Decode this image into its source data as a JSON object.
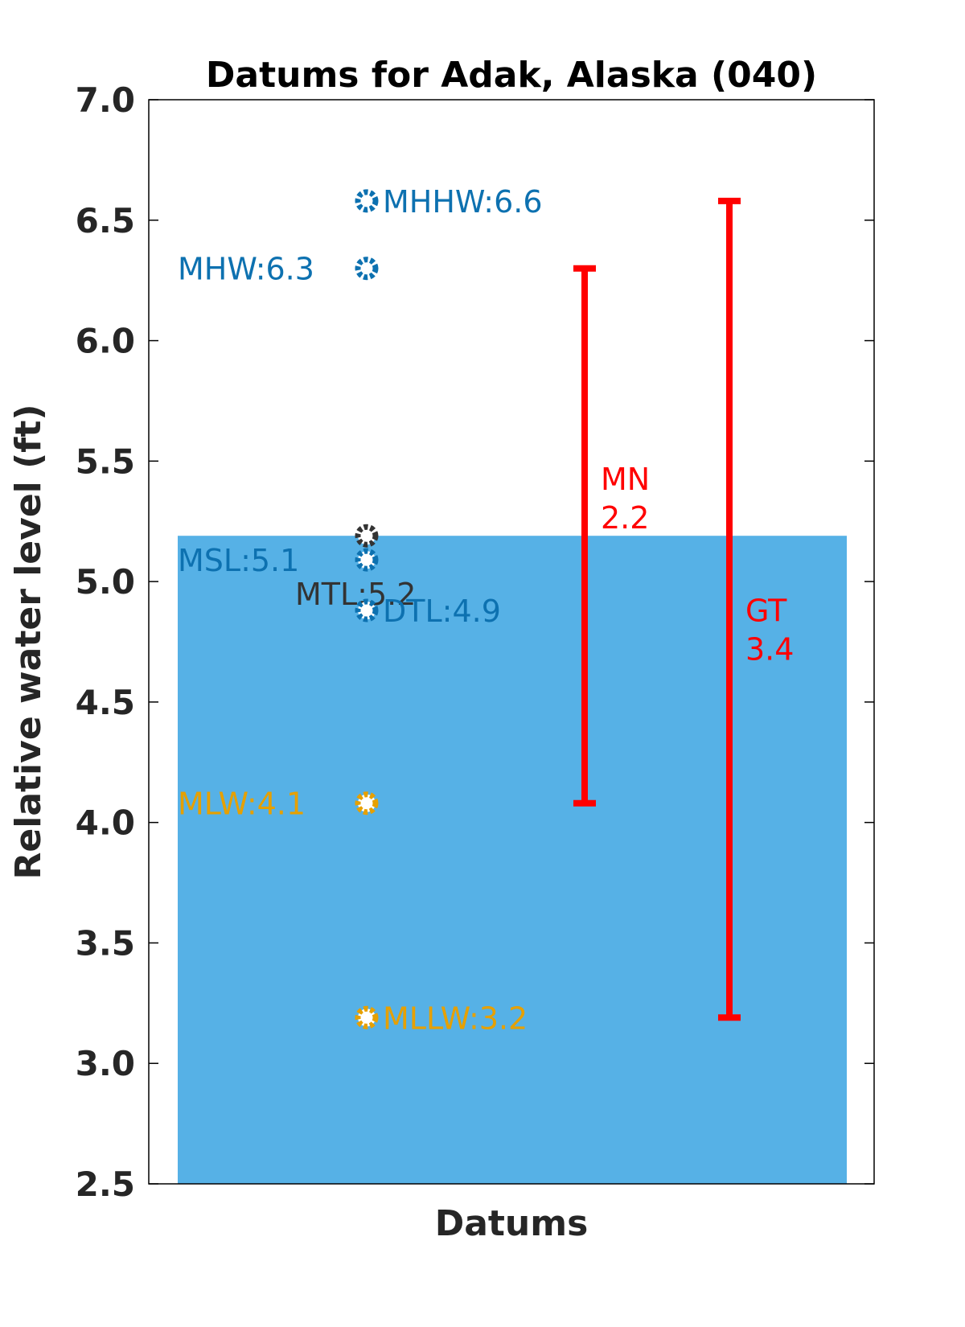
{
  "chart_data": {
    "type": "scatter",
    "title": "Datums for Adak, Alaska (040)",
    "xlabel": "Datums",
    "ylabel": "Relative water level (ft)",
    "ylim": [
      2.5,
      7.0
    ],
    "yticks": [
      "2.5",
      "3.0",
      "3.5",
      "4.0",
      "4.5",
      "5.0",
      "5.5",
      "6.0",
      "6.5",
      "7.0"
    ],
    "grid": false,
    "background_bar": {
      "top": 5.19,
      "color": "#56b1e6"
    },
    "datums": [
      {
        "key": "MHHW",
        "value": 6.58,
        "label": "MHHW:6.6",
        "color": "#0d71b0",
        "label_side": "right"
      },
      {
        "key": "MHW",
        "value": 6.3,
        "label": "MHW:6.3",
        "color": "#0d71b0",
        "label_side": "left"
      },
      {
        "key": "MTL",
        "value": 5.19,
        "label": "MTL:5.2",
        "color": "#333333",
        "label_side": "left-below"
      },
      {
        "key": "MSL",
        "value": 5.09,
        "label": "MSL:5.1",
        "color": "#0d71b0",
        "label_side": "left"
      },
      {
        "key": "DTL",
        "value": 4.88,
        "label": "DTL:4.9",
        "color": "#0d71b0",
        "label_side": "right"
      },
      {
        "key": "MLW",
        "value": 4.08,
        "label": "MLW:4.1",
        "color": "#e6a000",
        "label_side": "left"
      },
      {
        "key": "MLLW",
        "value": 3.19,
        "label": "MLLW:3.2",
        "color": "#e6a000",
        "label_side": "right"
      }
    ],
    "ranges": [
      {
        "name": "MN",
        "value": "2.2",
        "low": 4.08,
        "high": 6.3,
        "color": "#ff0000"
      },
      {
        "name": "GT",
        "value": "3.4",
        "low": 3.19,
        "high": 6.58,
        "color": "#ff0000"
      }
    ]
  }
}
